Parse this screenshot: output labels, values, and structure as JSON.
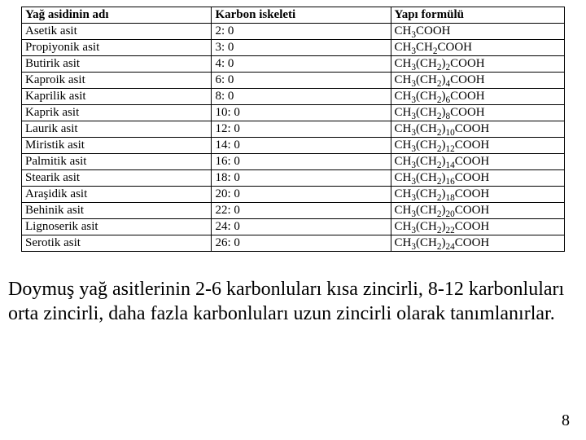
{
  "table": {
    "headers": [
      "Yağ asidinin adı",
      "Karbon iskeleti",
      "Yapı formülü"
    ],
    "rows": [
      [
        "Asetik asit",
        "2: 0",
        "CH3COOH"
      ],
      [
        "Propiyonik asit",
        "3: 0",
        "CH3CH2COOH"
      ],
      [
        "Butirik asit",
        "4: 0",
        "CH3(CH2)2COOH"
      ],
      [
        "Kaproik asit",
        "6: 0",
        "CH3(CH2)4COOH"
      ],
      [
        "Kaprilik asit",
        "8: 0",
        "CH3(CH2)6COOH"
      ],
      [
        "Kaprik asit",
        "10: 0",
        "CH3(CH2)8COOH"
      ],
      [
        "Laurik asit",
        "12: 0",
        "CH3(CH2)10COOH"
      ],
      [
        "Miristik asit",
        "14: 0",
        "CH3(CH2)12COOH"
      ],
      [
        "Palmitik asit",
        "16: 0",
        "CH3(CH2)14COOH"
      ],
      [
        "Stearik asit",
        "18: 0",
        "CH3(CH2)16COOH"
      ],
      [
        "Araşidik asit",
        "20: 0",
        "CH3(CH2)18COOH"
      ],
      [
        "Behinik asit",
        "22: 0",
        "CH3(CH2)20COOH"
      ],
      [
        "Lignoserik asit",
        "24: 0",
        "CH3(CH2)22COOH"
      ],
      [
        "Serotik asit",
        "26: 0",
        "CH3(CH2)24COOH"
      ]
    ]
  },
  "caption": "Doymuş yağ asitlerinin 2-6 karbonluları kısa zincirli, 8-12 karbonluları orta zincirli, daha fazla karbonluları uzun zincirli olarak tanımlanırlar.",
  "pageNumber": "8",
  "style": {
    "font": "Times New Roman",
    "tableFontSize": 15,
    "captionFontSize": 24,
    "borderColor": "#000000",
    "background": "#ffffff"
  }
}
